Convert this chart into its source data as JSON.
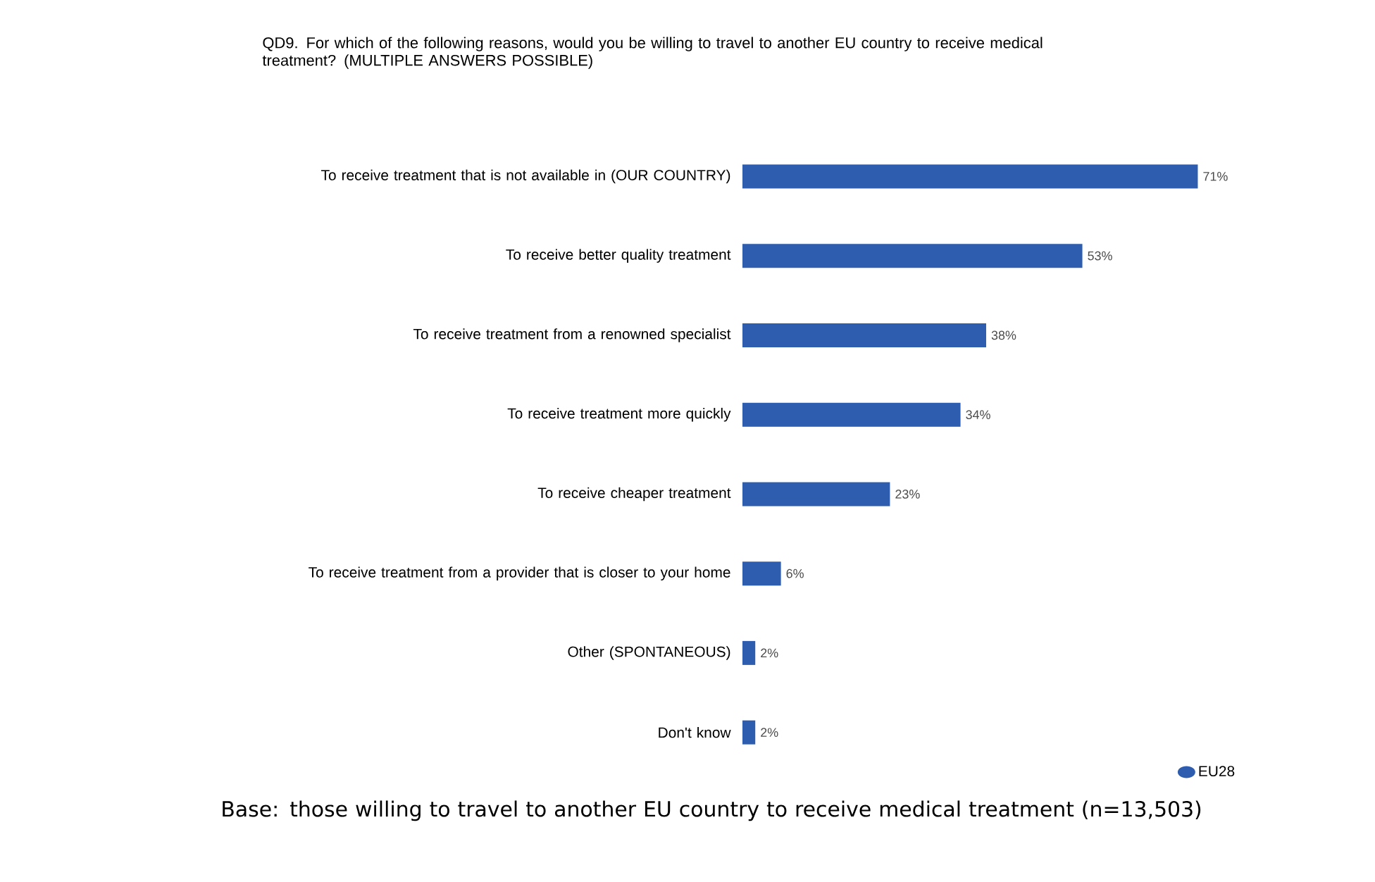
{
  "chart_data": {
    "type": "bar",
    "orientation": "horizontal",
    "title": "QD9. For which of the following reasons, would you be willing to travel to another EU country to receive medical treatment? (MULTIPLE ANSWERS POSSIBLE)",
    "categories": [
      "To receive treatment that is not available in (OUR COUNTRY)",
      "To receive better quality treatment",
      "To receive treatment from a renowned specialist",
      "To receive treatment more quickly",
      "To receive cheaper treatment",
      "To receive treatment from a provider that is closer to your home",
      "Other (SPONTANEOUS)",
      "Don't know"
    ],
    "series": [
      {
        "name": "EU28",
        "color": "#2e5cae",
        "values": [
          71,
          53,
          38,
          34,
          23,
          6,
          2,
          2
        ],
        "value_labels": [
          "71%",
          "53%",
          "38%",
          "34%",
          "23%",
          "6%",
          "2%",
          "2%"
        ]
      }
    ],
    "legend": "bottom right",
    "annotations": [
      "Base: those willing to travel to another EU country to receive medical treatment (n=13,503)"
    ]
  }
}
